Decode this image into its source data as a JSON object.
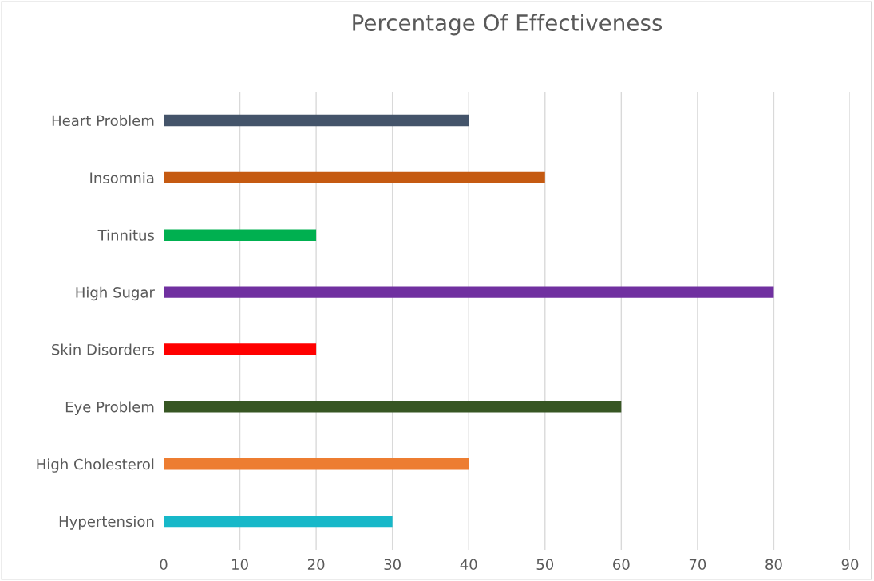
{
  "chart_data": {
    "type": "bar",
    "orientation": "horizontal",
    "title": "Percentage Of Effectiveness",
    "categories": [
      "Heart Problem",
      "Insomnia",
      "Tinnitus",
      "High Sugar",
      "Skin Disorders",
      "Eye Problem",
      "High Cholesterol",
      "Hypertension"
    ],
    "values": [
      40,
      50,
      20,
      80,
      20,
      60,
      40,
      30
    ],
    "colors": [
      "#44546a",
      "#c55a11",
      "#00b050",
      "#7030a0",
      "#ff0000",
      "#375623",
      "#ed7d31",
      "#17b8c9"
    ],
    "xlim": [
      0,
      90
    ],
    "xticks": [
      0,
      10,
      20,
      30,
      40,
      50,
      60,
      70,
      80,
      90
    ],
    "grid": "x"
  }
}
